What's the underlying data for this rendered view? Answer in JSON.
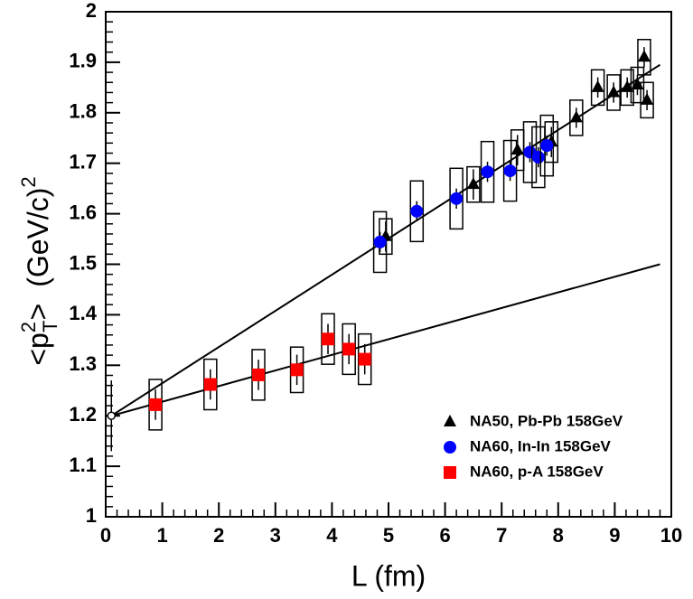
{
  "chart_data": {
    "type": "scatter",
    "xlabel": "L (fm)",
    "ylabel": [
      "<p",
      "2",
      "T",
      ">",
      "(GeV/c)",
      "2"
    ],
    "xlim": [
      0,
      10
    ],
    "ylim": [
      1,
      2
    ],
    "xticks": [
      0,
      1,
      2,
      3,
      4,
      5,
      6,
      7,
      8,
      9,
      10
    ],
    "yticks": [
      1,
      1.1,
      1.2,
      1.3,
      1.4,
      1.5,
      1.6,
      1.7,
      1.8,
      1.9,
      2
    ],
    "legend": "lower right",
    "series": [
      {
        "name": "NA50, Pb-Pb 158GeV",
        "marker": "triangle",
        "color": "#000000",
        "x": [
          4.95,
          6.5,
          7.28,
          7.88,
          8.32,
          8.7,
          8.98,
          9.22,
          9.4,
          9.52,
          9.57
        ],
        "values": [
          1.555,
          1.658,
          1.726,
          1.742,
          1.79,
          1.85,
          1.84,
          1.85,
          1.855,
          1.91,
          1.825
        ],
        "stat": [
          0.03,
          0.03,
          0.03,
          0.03,
          0.02,
          0.02,
          0.02,
          0.02,
          0.02,
          0.02,
          0.02
        ],
        "syst": [
          0.035,
          0.035,
          0.04,
          0.04,
          0.035,
          0.035,
          0.035,
          0.035,
          0.035,
          0.035,
          0.035
        ]
      },
      {
        "name": "NA60, In-In 158GeV",
        "marker": "circle",
        "color": "#0000ff",
        "x": [
          4.85,
          5.5,
          6.2,
          6.75,
          7.15,
          7.5,
          7.65,
          7.8
        ],
        "values": [
          1.544,
          1.605,
          1.63,
          1.683,
          1.685,
          1.722,
          1.712,
          1.735
        ],
        "stat": [
          0.02,
          0.02,
          0.02,
          0.02,
          0.02,
          0.02,
          0.02,
          0.02
        ],
        "syst": [
          0.06,
          0.06,
          0.06,
          0.06,
          0.06,
          0.06,
          0.06,
          0.06
        ]
      },
      {
        "name": "NA60, p-A 158GeV",
        "marker": "square",
        "color": "#ff0000",
        "x": [
          0.88,
          1.85,
          2.7,
          3.38,
          3.93,
          4.3,
          4.58
        ],
        "values": [
          1.222,
          1.262,
          1.281,
          1.291,
          1.352,
          1.332,
          1.312
        ],
        "stat": [
          0.03,
          0.03,
          0.03,
          0.03,
          0.03,
          0.03,
          0.03
        ],
        "syst": [
          0.05,
          0.05,
          0.05,
          0.045,
          0.05,
          0.05,
          0.05
        ]
      }
    ],
    "reference": {
      "x": 0.1,
      "value": 1.2,
      "error": 0.07
    },
    "fits": [
      {
        "x": [
          0.1,
          9.8
        ],
        "values": [
          1.2,
          1.895
        ]
      },
      {
        "x": [
          0.1,
          9.8
        ],
        "values": [
          1.2,
          1.5
        ]
      }
    ]
  }
}
